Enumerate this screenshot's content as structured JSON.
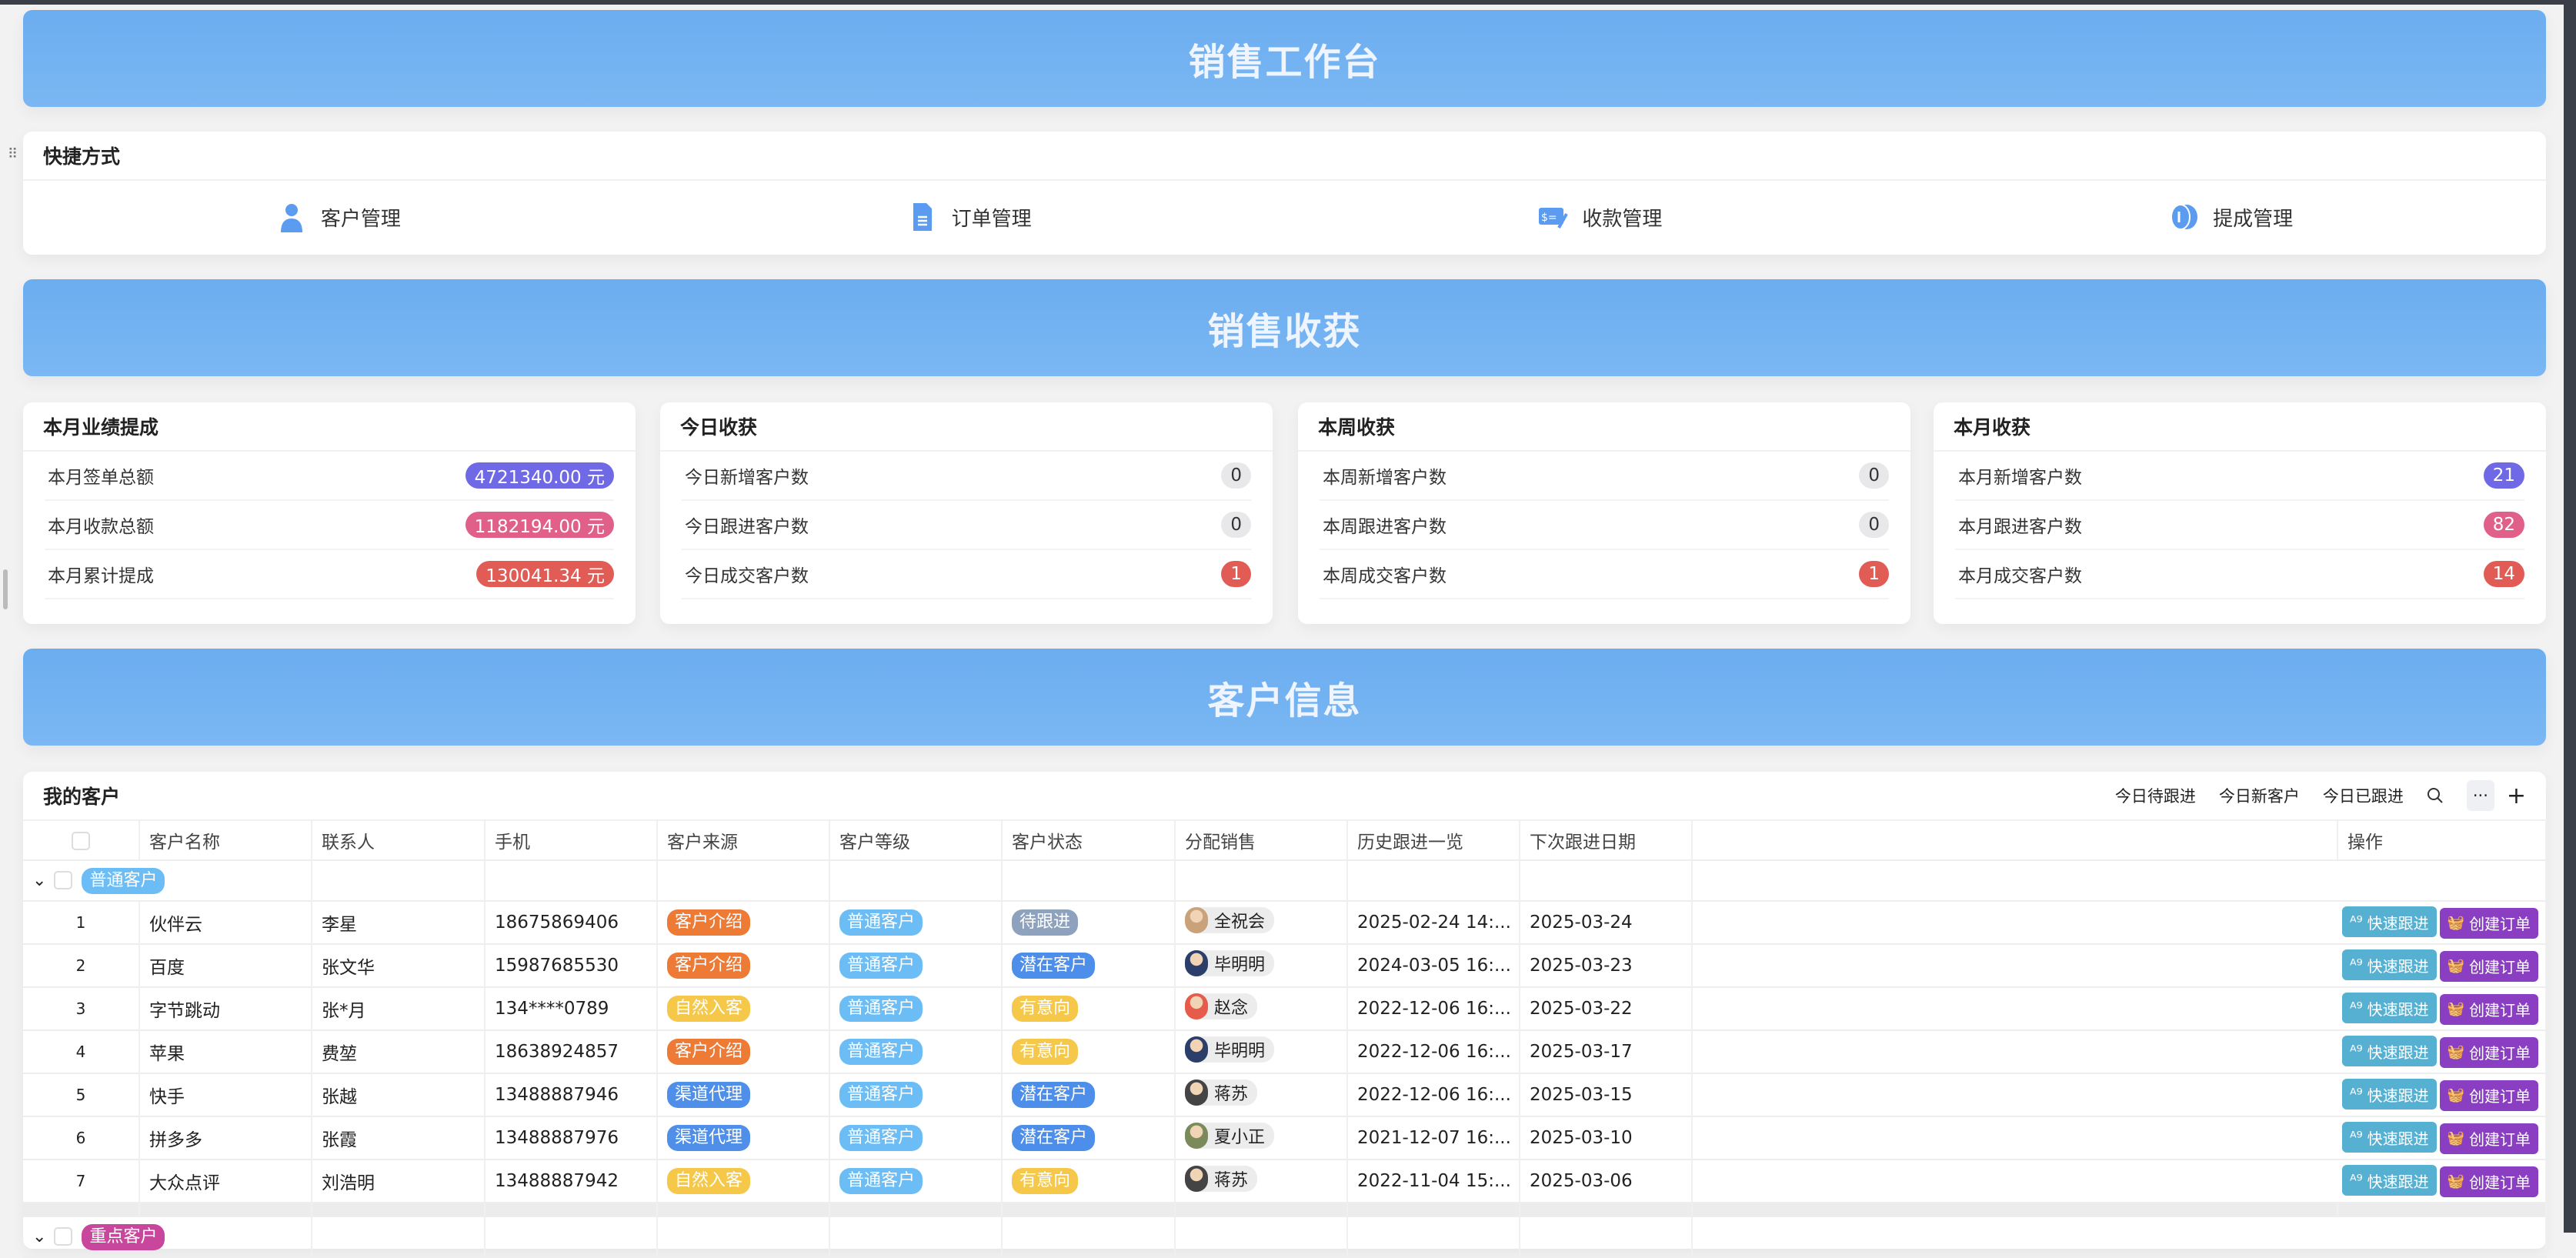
{
  "banners": {
    "workbench": "销售工作台",
    "harvest": "销售收获",
    "customers": "客户信息"
  },
  "quick": {
    "title": "快捷方式",
    "items": [
      {
        "label": "客户管理",
        "icon": "user-icon"
      },
      {
        "label": "订单管理",
        "icon": "document-icon"
      },
      {
        "label": "收款管理",
        "icon": "payment-icon"
      },
      {
        "label": "提成管理",
        "icon": "coin-icon"
      }
    ]
  },
  "stats": [
    {
      "title": "本月业绩提成",
      "rows": [
        {
          "label": "本月签单总额",
          "value": "4721340.00 元",
          "color": "#7069e6"
        },
        {
          "label": "本月收款总额",
          "value": "1182194.00 元",
          "color": "#e0608a"
        },
        {
          "label": "本月累计提成",
          "value": "130041.34 元",
          "color": "#e05c55"
        }
      ]
    },
    {
      "title": "今日收获",
      "rows": [
        {
          "label": "今日新增客户数",
          "value": "0",
          "color": ""
        },
        {
          "label": "今日跟进客户数",
          "value": "0",
          "color": ""
        },
        {
          "label": "今日成交客户数",
          "value": "1",
          "color": "#e05c55"
        }
      ]
    },
    {
      "title": "本周收获",
      "rows": [
        {
          "label": "本周新增客户数",
          "value": "0",
          "color": ""
        },
        {
          "label": "本周跟进客户数",
          "value": "0",
          "color": ""
        },
        {
          "label": "本周成交客户数",
          "value": "1",
          "color": "#e05c55"
        }
      ]
    },
    {
      "title": "本月收获",
      "rows": [
        {
          "label": "本月新增客户数",
          "value": "21",
          "color": "#7069e6"
        },
        {
          "label": "本月跟进客户数",
          "value": "82",
          "color": "#e0608a"
        },
        {
          "label": "本月成交客户数",
          "value": "14",
          "color": "#e05c55"
        }
      ]
    }
  ],
  "table": {
    "title": "我的客户",
    "tools": [
      "今日待跟进",
      "今日新客户",
      "今日已跟进"
    ],
    "columns": [
      "客户名称",
      "联系人",
      "手机",
      "客户来源",
      "客户等级",
      "客户状态",
      "分配销售",
      "历史跟进一览",
      "下次跟进日期",
      "",
      "操作"
    ],
    "actions": {
      "follow": "快速跟进",
      "order": "创建订单"
    },
    "tag_colors": {
      "客户介绍": "#ee7b35",
      "自然入客": "#f5c84a",
      "渠道代理": "#4f8fea",
      "普通客户": "#6cbdf6",
      "待跟进": "#8ea2bd",
      "潜在客户": "#4d8eea",
      "有意向": "#f5c84a",
      "重点客户": "#c8479c"
    },
    "groups": [
      {
        "name": "普通客户",
        "rows": [
          {
            "n": "1",
            "name": "伙伴云",
            "contact": "李星",
            "phone": "18675869406",
            "source": "客户介绍",
            "level": "普通客户",
            "status": "待跟进",
            "sales": "全祝会",
            "history": "2025-02-24 14:...",
            "next": "2025-03-24"
          },
          {
            "n": "2",
            "name": "百度",
            "contact": "张文华",
            "phone": "15987685530",
            "source": "客户介绍",
            "level": "普通客户",
            "status": "潜在客户",
            "sales": "毕明明",
            "history": "2024-03-05 16:...",
            "next": "2025-03-23"
          },
          {
            "n": "3",
            "name": "字节跳动",
            "contact": "张*月",
            "phone": "134****0789",
            "source": "自然入客",
            "level": "普通客户",
            "status": "有意向",
            "sales": "赵念",
            "history": "2022-12-06 16:...",
            "next": "2025-03-22"
          },
          {
            "n": "4",
            "name": "苹果",
            "contact": "费堃",
            "phone": "18638924857",
            "source": "客户介绍",
            "level": "普通客户",
            "status": "有意向",
            "sales": "毕明明",
            "history": "2022-12-06 16:...",
            "next": "2025-03-17"
          },
          {
            "n": "5",
            "name": "快手",
            "contact": "张越",
            "phone": "13488887946",
            "source": "渠道代理",
            "level": "普通客户",
            "status": "潜在客户",
            "sales": "蒋苏",
            "history": "2022-12-06 16:...",
            "next": "2025-03-15"
          },
          {
            "n": "6",
            "name": "拼多多",
            "contact": "张霞",
            "phone": "13488887976",
            "source": "渠道代理",
            "level": "普通客户",
            "status": "潜在客户",
            "sales": "夏小正",
            "history": "2021-12-07 16:...",
            "next": "2025-03-10"
          },
          {
            "n": "7",
            "name": "大众点评",
            "contact": "刘浩明",
            "phone": "13488887942",
            "source": "自然入客",
            "level": "普通客户",
            "status": "有意向",
            "sales": "蒋苏",
            "history": "2022-11-04 15:...",
            "next": "2025-03-06"
          }
        ]
      },
      {
        "name": "重点客户",
        "rows": []
      }
    ]
  }
}
